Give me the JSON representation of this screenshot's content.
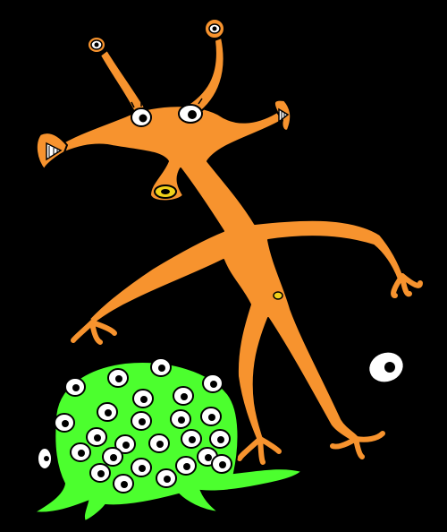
{
  "scene": {
    "background_color": "#000000",
    "creatures": [
      {
        "id": "orange-creature",
        "kind": "many-armed orange creature with eyes on stalks",
        "body_color": "#f7932e",
        "outline_color": "#000000",
        "eye_count": 4,
        "mouth_count": 2
      },
      {
        "id": "green-blob",
        "kind": "green slime blob covered in eyes",
        "body_color": "#4cff2e",
        "outline_color": "#000000",
        "eye_count": 25
      },
      {
        "id": "floating-eye",
        "kind": "lone floating eyeball",
        "body_color": "#ffffff"
      }
    ],
    "accent_colors": {
      "mouth_yellow": "#f2d21a",
      "eye_white": "#ffffff",
      "pupil": "#000000"
    }
  }
}
